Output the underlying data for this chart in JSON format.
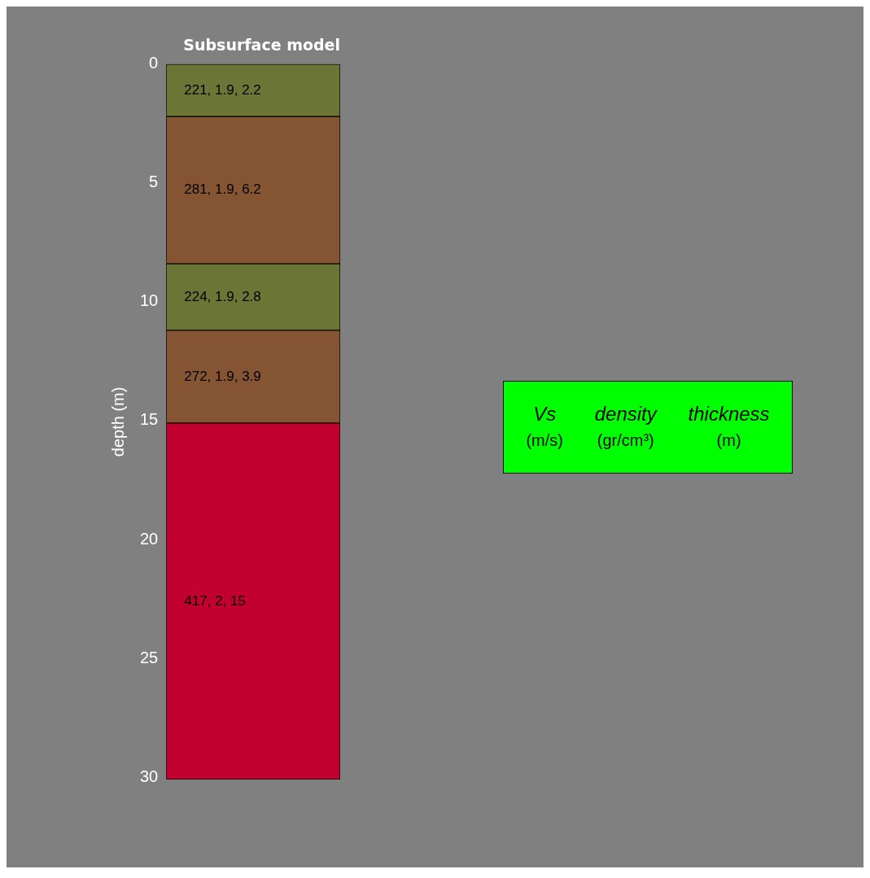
{
  "chart_data": {
    "type": "bar",
    "title": "Subsurface model",
    "ylabel": "depth (m)",
    "categories": [
      null
    ],
    "stacked": true,
    "series": [
      {
        "color": "#6b7536",
        "values": [
          2.2
        ],
        "value_labels": [
          "221, 1.9, 2.2"
        ]
      },
      {
        "color": "#845433",
        "values": [
          6.2
        ],
        "value_labels": [
          "281, 1.9, 6.2"
        ]
      },
      {
        "color": "#6b7536",
        "values": [
          2.8
        ],
        "value_labels": [
          "224, 1.9, 2.8"
        ]
      },
      {
        "color": "#845433",
        "values": [
          3.9
        ],
        "value_labels": [
          "272, 1.9, 3.9"
        ]
      },
      {
        "color": "#c20030",
        "values": [
          15
        ],
        "value_labels": [
          "417, 2, 15"
        ]
      }
    ],
    "ylim": [
      30.1,
      0
    ],
    "yticks": [
      0,
      5,
      10,
      15,
      20,
      25,
      30
    ],
    "grid": false,
    "legend": false,
    "tick_labels": "y",
    "annotations": [
      "Vs\n(m/s)",
      "density\n(gr/cm³)",
      "thickness\n(m)"
    ]
  }
}
